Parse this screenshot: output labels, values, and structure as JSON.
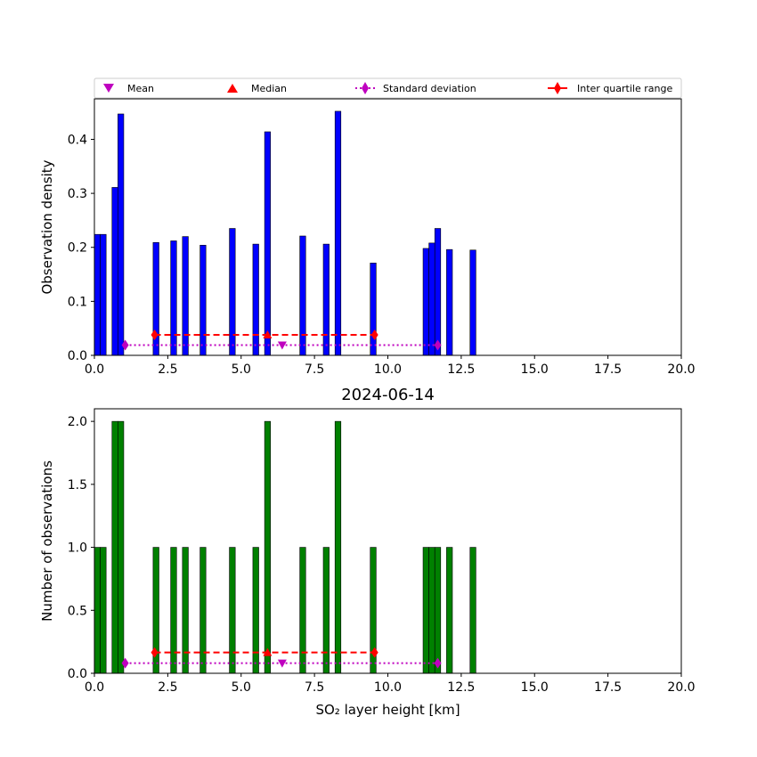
{
  "title": "2024-06-14",
  "colors": {
    "density_bars": "#0000ff",
    "count_bars": "#008000",
    "bar_edge": "#000000",
    "mean": "#bf00bf",
    "median": "#ff0000",
    "std": "#bf00bf",
    "iqr": "#ff0000"
  },
  "legend": {
    "placement": "top, above upper panel",
    "items": [
      {
        "label": "Mean",
        "marker": "triangle-down",
        "color": "#bf00bf"
      },
      {
        "label": "Median",
        "marker": "triangle-up",
        "color": "#ff0000"
      },
      {
        "label": "Standard deviation",
        "marker": "thin-diamond",
        "line": "dotted",
        "color": "#bf00bf"
      },
      {
        "label": "Inter quartile range",
        "marker": "thin-diamond",
        "line": "solid",
        "color": "#ff0000"
      }
    ]
  },
  "chart_data": [
    {
      "type": "bar",
      "panel": "top",
      "ylabel": "Observation density",
      "xlim": [
        0,
        20
      ],
      "ylim": [
        0,
        0.475
      ],
      "xticks": [
        0,
        2.5,
        5,
        7.5,
        10,
        12.5,
        15,
        17.5,
        20
      ],
      "xtick_labels": [
        "0.0",
        "2.5",
        "5.0",
        "7.5",
        "10.0",
        "12.5",
        "15.0",
        "17.5",
        "20.0"
      ],
      "yticks": [
        0,
        0.1,
        0.2,
        0.3,
        0.4
      ],
      "ytick_labels": [
        "0.0",
        "0.1",
        "0.2",
        "0.3",
        "0.4"
      ],
      "bins": [
        {
          "x0": 0.0,
          "x1": 0.2,
          "value": 0.224
        },
        {
          "x0": 0.2,
          "x1": 0.4,
          "value": 0.224
        },
        {
          "x0": 0.6,
          "x1": 0.8,
          "value": 0.311
        },
        {
          "x0": 0.8,
          "x1": 1.0,
          "value": 0.447
        },
        {
          "x0": 2.0,
          "x1": 2.2,
          "value": 0.209
        },
        {
          "x0": 2.6,
          "x1": 2.8,
          "value": 0.212
        },
        {
          "x0": 3.0,
          "x1": 3.2,
          "value": 0.22
        },
        {
          "x0": 3.6,
          "x1": 3.8,
          "value": 0.204
        },
        {
          "x0": 4.6,
          "x1": 4.8,
          "value": 0.235
        },
        {
          "x0": 5.4,
          "x1": 5.6,
          "value": 0.206
        },
        {
          "x0": 5.8,
          "x1": 6.0,
          "value": 0.414
        },
        {
          "x0": 7.0,
          "x1": 7.2,
          "value": 0.221
        },
        {
          "x0": 7.8,
          "x1": 8.0,
          "value": 0.206
        },
        {
          "x0": 8.2,
          "x1": 8.4,
          "value": 0.452
        },
        {
          "x0": 9.4,
          "x1": 9.6,
          "value": 0.171
        },
        {
          "x0": 11.2,
          "x1": 11.4,
          "value": 0.198
        },
        {
          "x0": 11.4,
          "x1": 11.6,
          "value": 0.208
        },
        {
          "x0": 11.6,
          "x1": 11.8,
          "value": 0.235
        },
        {
          "x0": 12.0,
          "x1": 12.2,
          "value": 0.196
        },
        {
          "x0": 12.8,
          "x1": 13.0,
          "value": 0.195
        }
      ],
      "stats": {
        "y": 0.019,
        "iqr_y": 0.038,
        "mean": 6.4,
        "median": 5.9,
        "std_range": [
          1.05,
          11.7
        ],
        "iqr_range": [
          2.05,
          9.55
        ]
      }
    },
    {
      "type": "bar",
      "panel": "bottom",
      "xlabel": "SO₂ layer height [km]",
      "ylabel": "Number of observations",
      "xlim": [
        0,
        20
      ],
      "ylim": [
        0,
        2.1
      ],
      "xticks": [
        0,
        2.5,
        5,
        7.5,
        10,
        12.5,
        15,
        17.5,
        20
      ],
      "xtick_labels": [
        "0.0",
        "2.5",
        "5.0",
        "7.5",
        "10.0",
        "12.5",
        "15.0",
        "17.5",
        "20.0"
      ],
      "yticks": [
        0,
        0.5,
        1.0,
        1.5,
        2.0
      ],
      "ytick_labels": [
        "0.0",
        "0.5",
        "1.0",
        "1.5",
        "2.0"
      ],
      "bins": [
        {
          "x0": 0.0,
          "x1": 0.2,
          "value": 1
        },
        {
          "x0": 0.2,
          "x1": 0.4,
          "value": 1
        },
        {
          "x0": 0.6,
          "x1": 0.8,
          "value": 2
        },
        {
          "x0": 0.8,
          "x1": 1.0,
          "value": 2
        },
        {
          "x0": 2.0,
          "x1": 2.2,
          "value": 1
        },
        {
          "x0": 2.6,
          "x1": 2.8,
          "value": 1
        },
        {
          "x0": 3.0,
          "x1": 3.2,
          "value": 1
        },
        {
          "x0": 3.6,
          "x1": 3.8,
          "value": 1
        },
        {
          "x0": 4.6,
          "x1": 4.8,
          "value": 1
        },
        {
          "x0": 5.4,
          "x1": 5.6,
          "value": 1
        },
        {
          "x0": 5.8,
          "x1": 6.0,
          "value": 2
        },
        {
          "x0": 7.0,
          "x1": 7.2,
          "value": 1
        },
        {
          "x0": 7.8,
          "x1": 8.0,
          "value": 1
        },
        {
          "x0": 8.2,
          "x1": 8.4,
          "value": 2
        },
        {
          "x0": 9.4,
          "x1": 9.6,
          "value": 1
        },
        {
          "x0": 11.2,
          "x1": 11.4,
          "value": 1
        },
        {
          "x0": 11.4,
          "x1": 11.6,
          "value": 1
        },
        {
          "x0": 11.6,
          "x1": 11.8,
          "value": 1
        },
        {
          "x0": 12.0,
          "x1": 12.2,
          "value": 1
        },
        {
          "x0": 12.8,
          "x1": 13.0,
          "value": 1
        }
      ],
      "stats": {
        "y": 0.08,
        "iqr_y": 0.165,
        "mean": 6.4,
        "median": 5.9,
        "std_range": [
          1.05,
          11.7
        ],
        "iqr_range": [
          2.05,
          9.55
        ]
      }
    }
  ]
}
